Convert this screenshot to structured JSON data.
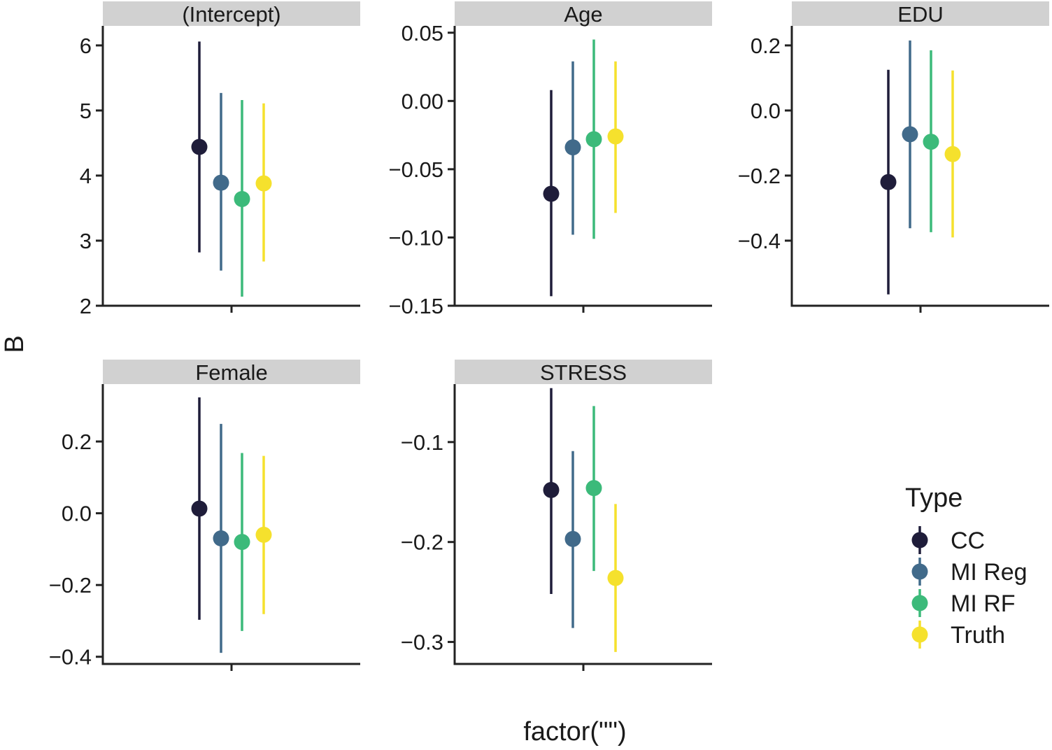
{
  "chart_data": {
    "type": "scatter",
    "subtype": "faceted point-range",
    "xlabel": "factor(\"\")",
    "ylabel": "B",
    "legend": {
      "title": "Type",
      "placement": "right",
      "entries": [
        {
          "name": "CC",
          "color": "#1f1d3a"
        },
        {
          "name": "MI Reg",
          "color": "#416a8a"
        },
        {
          "name": "MI RF",
          "color": "#3cba7a"
        },
        {
          "name": "Truth",
          "color": "#f5e12d"
        }
      ]
    },
    "grid": false,
    "panels": [
      {
        "title": "(Intercept)",
        "ylim": [
          2,
          6.3
        ],
        "yticks": [
          "2",
          "3",
          "4",
          "5",
          "6"
        ],
        "ytick_values": [
          2,
          3,
          4,
          5,
          6
        ],
        "series": [
          {
            "name": "CC",
            "estimate": 4.44,
            "low": 2.82,
            "high": 6.06
          },
          {
            "name": "MI Reg",
            "estimate": 3.89,
            "low": 2.54,
            "high": 5.27
          },
          {
            "name": "MI RF",
            "estimate": 3.64,
            "low": 2.14,
            "high": 5.16
          },
          {
            "name": "Truth",
            "estimate": 3.88,
            "low": 2.68,
            "high": 5.11
          }
        ]
      },
      {
        "title": "Age",
        "ylim": [
          -0.15,
          0.055
        ],
        "yticks": [
          "−0.15",
          "−0.10",
          "−0.05",
          "0.00",
          "0.05"
        ],
        "ytick_values": [
          -0.15,
          -0.1,
          -0.05,
          0.0,
          0.05
        ],
        "series": [
          {
            "name": "CC",
            "estimate": -0.068,
            "low": -0.143,
            "high": 0.008
          },
          {
            "name": "MI Reg",
            "estimate": -0.034,
            "low": -0.098,
            "high": 0.029
          },
          {
            "name": "MI RF",
            "estimate": -0.028,
            "low": -0.101,
            "high": 0.045
          },
          {
            "name": "Truth",
            "estimate": -0.026,
            "low": -0.082,
            "high": 0.029
          }
        ]
      },
      {
        "title": "EDU",
        "ylim": [
          -0.6,
          0.26
        ],
        "yticks": [
          "−0.4",
          "−0.2",
          "0.0",
          "0.2"
        ],
        "ytick_values": [
          -0.4,
          -0.2,
          0.0,
          0.2
        ],
        "series": [
          {
            "name": "CC",
            "estimate": -0.22,
            "low": -0.565,
            "high": 0.125
          },
          {
            "name": "MI Reg",
            "estimate": -0.073,
            "low": -0.362,
            "high": 0.215
          },
          {
            "name": "MI RF",
            "estimate": -0.096,
            "low": -0.374,
            "high": 0.185
          },
          {
            "name": "Truth",
            "estimate": -0.134,
            "low": -0.39,
            "high": 0.123
          }
        ]
      },
      {
        "title": "Female",
        "ylim": [
          -0.42,
          0.36
        ],
        "yticks": [
          "−0.4",
          "−0.2",
          "0.0",
          "0.2"
        ],
        "ytick_values": [
          -0.4,
          -0.2,
          0.0,
          0.2
        ],
        "series": [
          {
            "name": "CC",
            "estimate": 0.013,
            "low": -0.297,
            "high": 0.323
          },
          {
            "name": "MI Reg",
            "estimate": -0.07,
            "low": -0.389,
            "high": 0.249
          },
          {
            "name": "MI RF",
            "estimate": -0.08,
            "low": -0.328,
            "high": 0.168
          },
          {
            "name": "Truth",
            "estimate": -0.06,
            "low": -0.281,
            "high": 0.16
          }
        ]
      },
      {
        "title": "STRESS",
        "ylim": [
          -0.322,
          -0.042
        ],
        "yticks": [
          "−0.3",
          "−0.2",
          "−0.1"
        ],
        "ytick_values": [
          -0.3,
          -0.2,
          -0.1
        ],
        "series": [
          {
            "name": "CC",
            "estimate": -0.148,
            "low": -0.252,
            "high": -0.046
          },
          {
            "name": "MI Reg",
            "estimate": -0.197,
            "low": -0.286,
            "high": -0.109
          },
          {
            "name": "MI RF",
            "estimate": -0.146,
            "low": -0.229,
            "high": -0.064
          },
          {
            "name": "Truth",
            "estimate": -0.236,
            "low": -0.31,
            "high": -0.162
          }
        ]
      }
    ]
  }
}
